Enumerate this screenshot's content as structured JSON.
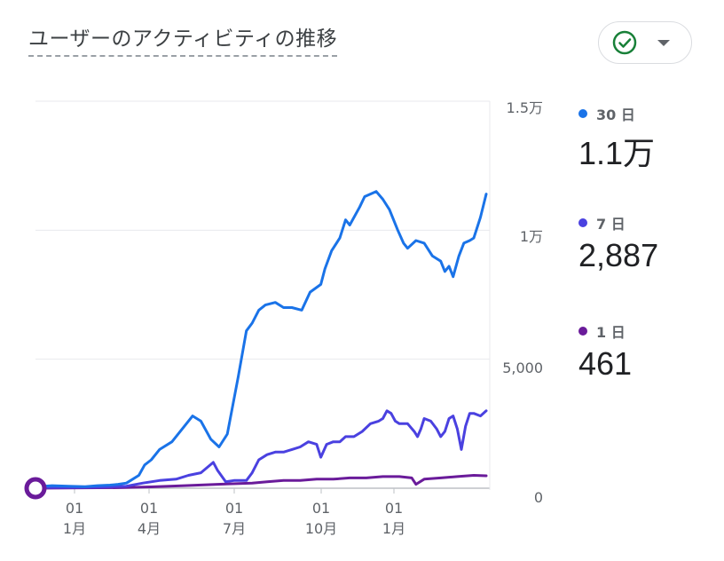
{
  "header": {
    "title": "ユーザーのアクティビティの推移"
  },
  "filter": {
    "icon": "check-circle-icon",
    "icon_color": "#188038",
    "dropdown_icon": "caret-down-icon"
  },
  "legend": [
    {
      "label": "30 日",
      "value": "1.1万",
      "color": "#1a73e8"
    },
    {
      "label": "7 日",
      "value": "2,887",
      "color": "#4a41e0"
    },
    {
      "label": "1 日",
      "value": "461",
      "color": "#6a1b9a"
    }
  ],
  "chart_data": {
    "type": "line",
    "x_tick_labels": [
      {
        "day": "01",
        "month": "1月"
      },
      {
        "day": "01",
        "month": "4月"
      },
      {
        "day": "01",
        "month": "7月"
      },
      {
        "day": "01",
        "month": "10月"
      },
      {
        "day": "01",
        "month": "1月"
      }
    ],
    "y_tick_labels": [
      "1.5万",
      "1万",
      "5,000",
      "0"
    ],
    "ylim": [
      0,
      15000
    ],
    "grid": true,
    "legend_placement": "right",
    "series": [
      {
        "name": "30 日",
        "color": "#1a73e8",
        "x": [
          0,
          20,
          40,
          60,
          75,
          90,
          100,
          110,
          115,
          125,
          132,
          140,
          150,
          165,
          175,
          190,
          200,
          212,
          222,
          232,
          245,
          255,
          262,
          270,
          278,
          290,
          300,
          310,
          322,
          332,
          345,
          350,
          358,
          368,
          375,
          380,
          392,
          398,
          405,
          412,
          420,
          428,
          438,
          445,
          450,
          460,
          470,
          480,
          490,
          495,
          500,
          505,
          512,
          518,
          525,
          530,
          538,
          545
        ],
        "y": [
          50,
          100,
          80,
          60,
          100,
          120,
          150,
          200,
          300,
          500,
          900,
          1100,
          1500,
          1800,
          2200,
          2800,
          2600,
          1900,
          1600,
          2100,
          4300,
          6100,
          6400,
          6900,
          7100,
          7200,
          7000,
          7000,
          6900,
          7600,
          7900,
          8500,
          9200,
          9700,
          10400,
          10200,
          10900,
          11300,
          11400,
          11500,
          11200,
          10800,
          10000,
          9500,
          9300,
          9600,
          9500,
          9000,
          8800,
          8400,
          8600,
          8200,
          9000,
          9500,
          9600,
          9700,
          10500,
          11400
        ]
      },
      {
        "name": "7 日",
        "color": "#4a41e0",
        "x": [
          0,
          40,
          80,
          110,
          130,
          150,
          170,
          185,
          200,
          215,
          220,
          230,
          240,
          255,
          262,
          270,
          280,
          290,
          300,
          310,
          320,
          330,
          340,
          345,
          352,
          360,
          368,
          375,
          385,
          395,
          405,
          415,
          420,
          425,
          430,
          435,
          440,
          450,
          458,
          462,
          466,
          470,
          478,
          485,
          490,
          495,
          500,
          505,
          510,
          515,
          520,
          525,
          530,
          538,
          545
        ],
        "y": [
          30,
          30,
          40,
          80,
          200,
          300,
          350,
          500,
          600,
          1000,
          700,
          250,
          300,
          300,
          600,
          1100,
          1300,
          1400,
          1400,
          1500,
          1600,
          1800,
          1700,
          1200,
          1700,
          1800,
          1800,
          2000,
          2000,
          2200,
          2500,
          2600,
          2700,
          3000,
          2900,
          2600,
          2500,
          2500,
          2200,
          2000,
          2300,
          2700,
          2600,
          2300,
          2000,
          2200,
          2700,
          2800,
          2300,
          1500,
          2400,
          2900,
          2900,
          2800,
          3000
        ]
      },
      {
        "name": "1 日",
        "color": "#6a1b9a",
        "x": [
          0,
          100,
          140,
          180,
          220,
          262,
          280,
          300,
          320,
          340,
          360,
          380,
          400,
          420,
          440,
          455,
          460,
          470,
          490,
          510,
          530,
          545
        ],
        "y": [
          0,
          20,
          50,
          100,
          150,
          200,
          250,
          300,
          300,
          350,
          350,
          400,
          400,
          450,
          450,
          400,
          150,
          350,
          400,
          450,
          500,
          480
        ]
      }
    ]
  }
}
